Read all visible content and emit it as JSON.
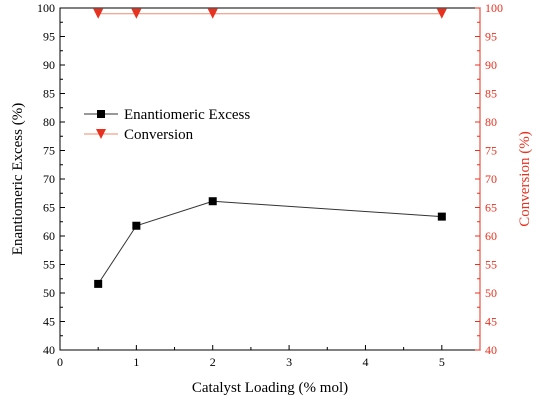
{
  "chart_data": {
    "type": "line",
    "xlabel": "Catalyst Loading (% mol)",
    "xlim": [
      0,
      5.5
    ],
    "xticks": [
      0,
      1,
      2,
      3,
      4,
      5
    ],
    "ylabel_left": "Enantiomeric Excess (%)",
    "ylim_left": [
      40,
      100
    ],
    "yticks_left": [
      40,
      45,
      50,
      55,
      60,
      65,
      70,
      75,
      80,
      85,
      90,
      95,
      100
    ],
    "ylabel_right": "Conversion (%)",
    "ylim_right": [
      40,
      100
    ],
    "yticks_right": [
      40,
      45,
      50,
      55,
      60,
      65,
      70,
      75,
      80,
      85,
      90,
      95,
      100
    ],
    "grid": false,
    "legend_position": "upper-left",
    "series": [
      {
        "name": "Enantiomeric Excess",
        "axis": "left",
        "marker": "square",
        "color": "#000000",
        "line_color": "#333333",
        "x": [
          0.5,
          1,
          2,
          5
        ],
        "y": [
          51.6,
          61.8,
          66.1,
          63.4
        ]
      },
      {
        "name": "Conversion",
        "axis": "right",
        "marker": "triangle-down",
        "color": "#e8311f",
        "line_color": "#f08a72",
        "x": [
          0.5,
          1,
          2,
          5
        ],
        "y": [
          99,
          99,
          99,
          99
        ]
      }
    ]
  }
}
